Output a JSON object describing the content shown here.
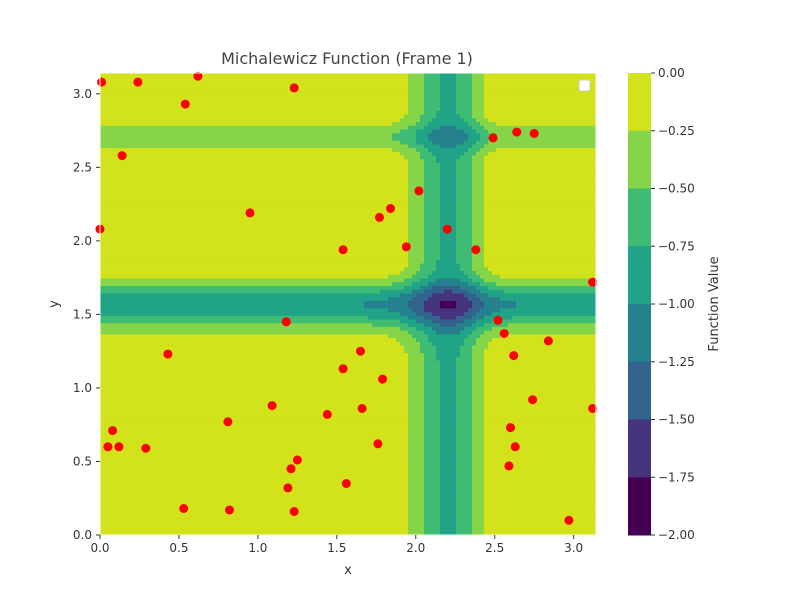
{
  "chart_data": {
    "type": "contour",
    "title": "Michalewicz Function (Frame 1)",
    "xlabel": "x",
    "ylabel": "y",
    "xlim": [
      0,
      3.14159
    ],
    "ylim": [
      0,
      3.14159
    ],
    "x_ticks": [
      0.0,
      0.5,
      1.0,
      1.5,
      2.0,
      2.5,
      3.0
    ],
    "y_ticks": [
      0.0,
      0.5,
      1.0,
      1.5,
      2.0,
      2.5,
      3.0
    ],
    "x_tick_labels": [
      "0.0",
      "0.5",
      "1.0",
      "1.5",
      "2.0",
      "2.5",
      "3.0"
    ],
    "y_tick_labels": [
      "0.0",
      "0.5",
      "1.0",
      "1.5",
      "2.0",
      "2.5",
      "3.0"
    ],
    "grid": false,
    "legend": "top-right (empty)",
    "colorbar": {
      "label": "Function Value",
      "levels": [
        0.0,
        -0.25,
        -0.5,
        -0.75,
        -1.0,
        -1.25,
        -1.5,
        -1.75,
        -2.0
      ],
      "tick_labels": [
        "0.00",
        "−0.25",
        "−0.50",
        "−0.75",
        "−1.00",
        "−1.25",
        "−1.50",
        "−1.75",
        "−2.00"
      ],
      "band_colors": [
        "#d2e21b",
        "#86d549",
        "#3fbc73",
        "#20a386",
        "#26818e",
        "#33638d",
        "#46337e",
        "#440154"
      ]
    },
    "colormap": "viridis",
    "points_color": "#ff0000",
    "points": [
      [
        0.01,
        3.08
      ],
      [
        0.24,
        3.08
      ],
      [
        0.62,
        3.12
      ],
      [
        1.23,
        3.04
      ],
      [
        0.54,
        2.93
      ],
      [
        0.14,
        2.58
      ],
      [
        2.49,
        2.7
      ],
      [
        2.64,
        2.74
      ],
      [
        2.75,
        2.73
      ],
      [
        0.95,
        2.19
      ],
      [
        2.02,
        2.34
      ],
      [
        1.84,
        2.22
      ],
      [
        1.77,
        2.16
      ],
      [
        2.2,
        2.08
      ],
      [
        0.0,
        2.08
      ],
      [
        1.94,
        1.96
      ],
      [
        1.54,
        1.94
      ],
      [
        2.38,
        1.94
      ],
      [
        3.12,
        1.72
      ],
      [
        1.18,
        1.45
      ],
      [
        2.52,
        1.46
      ],
      [
        2.56,
        1.37
      ],
      [
        1.65,
        1.25
      ],
      [
        2.62,
        1.22
      ],
      [
        2.84,
        1.32
      ],
      [
        0.43,
        1.23
      ],
      [
        1.54,
        1.13
      ],
      [
        1.79,
        1.06
      ],
      [
        2.74,
        0.92
      ],
      [
        3.12,
        0.86
      ],
      [
        1.09,
        0.88
      ],
      [
        1.44,
        0.82
      ],
      [
        1.66,
        0.86
      ],
      [
        0.81,
        0.77
      ],
      [
        0.08,
        0.71
      ],
      [
        0.05,
        0.6
      ],
      [
        0.12,
        0.6
      ],
      [
        0.29,
        0.59
      ],
      [
        1.76,
        0.62
      ],
      [
        2.6,
        0.73
      ],
      [
        2.63,
        0.6
      ],
      [
        2.59,
        0.47
      ],
      [
        1.25,
        0.51
      ],
      [
        1.21,
        0.45
      ],
      [
        1.56,
        0.35
      ],
      [
        1.19,
        0.32
      ],
      [
        0.53,
        0.18
      ],
      [
        0.82,
        0.17
      ],
      [
        1.23,
        0.16
      ],
      [
        2.97,
        0.1
      ]
    ]
  }
}
